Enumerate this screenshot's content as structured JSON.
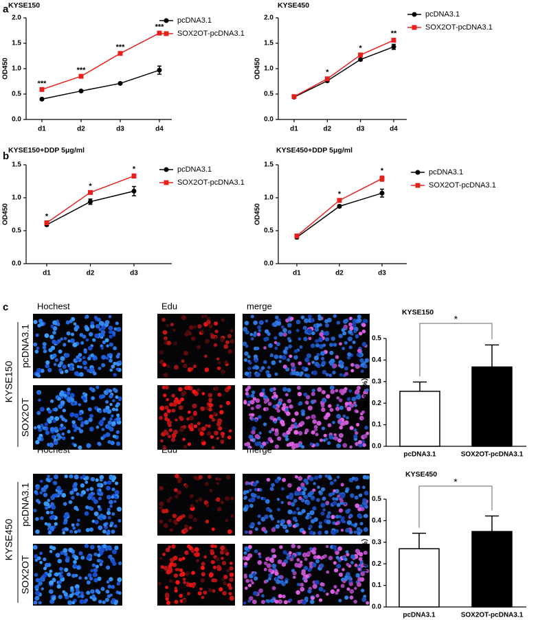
{
  "figure": {
    "panel_labels": [
      "a",
      "b",
      "c"
    ],
    "image_panels": [
      {
        "cell_line": "KYSE150",
        "columns": [
          "Hochest",
          "Edu",
          "merge"
        ],
        "rows": [
          "pcDNA3.1",
          "SOX2OT"
        ]
      },
      {
        "cell_line": "KYSE450",
        "columns": [
          "Hochest",
          "Edu",
          "merge"
        ],
        "rows": [
          "pcDNA3.1",
          "SOX2OT"
        ]
      }
    ]
  },
  "chart_data": [
    {
      "type": "line",
      "title": "KYSE150",
      "ylabel": "OD450",
      "categories": [
        "d1",
        "d2",
        "d3",
        "d4"
      ],
      "ylim": [
        0,
        2
      ],
      "yticks": [
        {
          "value": 0,
          "label": "0.0"
        },
        0.5,
        {
          "value": 1,
          "label": "1.0"
        },
        1.5,
        {
          "value": 2,
          "label": "2.0"
        }
      ],
      "legend": true,
      "series": [
        {
          "name": "pcDNA3.1",
          "color": "#000000",
          "marker": "circle",
          "values": [
            0.4,
            0.56,
            0.71,
            0.97
          ],
          "errors": [
            0.02,
            0.02,
            0.02,
            0.08
          ]
        },
        {
          "name": "SOX2OT-pcDNA3.1",
          "color": "#e8201c",
          "marker": "square",
          "values": [
            0.59,
            0.85,
            1.3,
            1.7
          ],
          "errors": [
            0.02,
            0.02,
            0.02,
            0.02
          ]
        }
      ],
      "annotations": [
        "***",
        "***",
        "***",
        "***"
      ]
    },
    {
      "type": "line",
      "title": "KYSE450",
      "ylabel": "OD450",
      "categories": [
        "d1",
        "d2",
        "d3",
        "d4"
      ],
      "ylim": [
        0,
        2
      ],
      "yticks": [
        {
          "value": 0,
          "label": "0.0"
        },
        0.5,
        {
          "value": 1,
          "label": "1.0"
        },
        1.5,
        {
          "value": 2,
          "label": "2.0"
        }
      ],
      "legend": true,
      "series": [
        {
          "name": "pcDNA3.1",
          "color": "#000000",
          "marker": "circle",
          "values": [
            0.44,
            0.76,
            1.18,
            1.43
          ],
          "errors": [
            0.02,
            0.02,
            0.02,
            0.05
          ]
        },
        {
          "name": "SOX2OT-pcDNA3.1",
          "color": "#e8201c",
          "marker": "square",
          "values": [
            0.45,
            0.8,
            1.27,
            1.56
          ],
          "errors": [
            0.02,
            0.03,
            0.03,
            0.03
          ]
        }
      ],
      "annotations": [
        null,
        "*",
        "*",
        "**"
      ]
    },
    {
      "type": "line",
      "title": "KYSE150+DDP 5μg/ml",
      "ylabel": "OD450",
      "categories": [
        "d1",
        "d2",
        "d3"
      ],
      "ylim": [
        0,
        1.5
      ],
      "yticks": [
        {
          "value": 0,
          "label": "0.0"
        },
        0.5,
        {
          "value": 1,
          "label": "1.0"
        },
        1.5
      ],
      "legend": true,
      "series": [
        {
          "name": "pcDNA3.1",
          "color": "#000000",
          "marker": "circle",
          "values": [
            0.59,
            0.94,
            1.1
          ],
          "errors": [
            0.02,
            0.04,
            0.07
          ]
        },
        {
          "name": "SOX2OT-pcDNA3.1",
          "color": "#e8201c",
          "marker": "square",
          "values": [
            0.62,
            1.08,
            1.33
          ],
          "errors": [
            0.02,
            0.02,
            0.03
          ]
        }
      ],
      "annotations": [
        "*",
        "*",
        "*"
      ]
    },
    {
      "type": "line",
      "title": "KYSE450+DDP 5μg/ml",
      "ylabel": "OD450",
      "categories": [
        "d1",
        "d2",
        "d3"
      ],
      "ylim": [
        0,
        1.5
      ],
      "yticks": [
        {
          "value": 0,
          "label": "0.0"
        },
        0.5,
        {
          "value": 1,
          "label": "1.0"
        },
        1.5
      ],
      "legend": true,
      "series": [
        {
          "name": "pcDNA3.1",
          "color": "#000000",
          "marker": "circle",
          "values": [
            0.4,
            0.87,
            1.07
          ],
          "errors": [
            0.02,
            0.02,
            0.06
          ]
        },
        {
          "name": "SOX2OT-pcDNA3.1",
          "color": "#e8201c",
          "marker": "square",
          "values": [
            0.42,
            0.96,
            1.29
          ],
          "errors": [
            0.02,
            0.02,
            0.04
          ]
        }
      ],
      "annotations": [
        null,
        "*",
        "*"
      ]
    },
    {
      "type": "bar",
      "title": "KYSE150",
      "ylabel": "Ratio（%）",
      "categories": [
        "pcDNA3.1",
        "SOX2OT-pcDNA3.1"
      ],
      "values": [
        0.255,
        0.368
      ],
      "errors": [
        0.043,
        0.102
      ],
      "colors": [
        "#ffffff",
        "#000000"
      ],
      "ylim": [
        0,
        0.5
      ],
      "yticks": [
        {
          "value": 0,
          "label": "0.0"
        },
        0.1,
        0.2,
        0.3,
        0.4,
        0.5
      ],
      "significance": "*"
    },
    {
      "type": "bar",
      "title": "KYSE450",
      "ylabel": "Ratio（%）",
      "categories": [
        "pcDNA3.1",
        "SOX2OT-pcDNA3.1"
      ],
      "values": [
        0.27,
        0.35
      ],
      "errors": [
        0.072,
        0.072
      ],
      "colors": [
        "#ffffff",
        "#000000"
      ],
      "ylim": [
        0,
        0.5
      ],
      "yticks": [
        {
          "value": 0,
          "label": "0.0"
        },
        0.1,
        0.2,
        0.3,
        0.4,
        0.5
      ],
      "significance": "*"
    }
  ]
}
